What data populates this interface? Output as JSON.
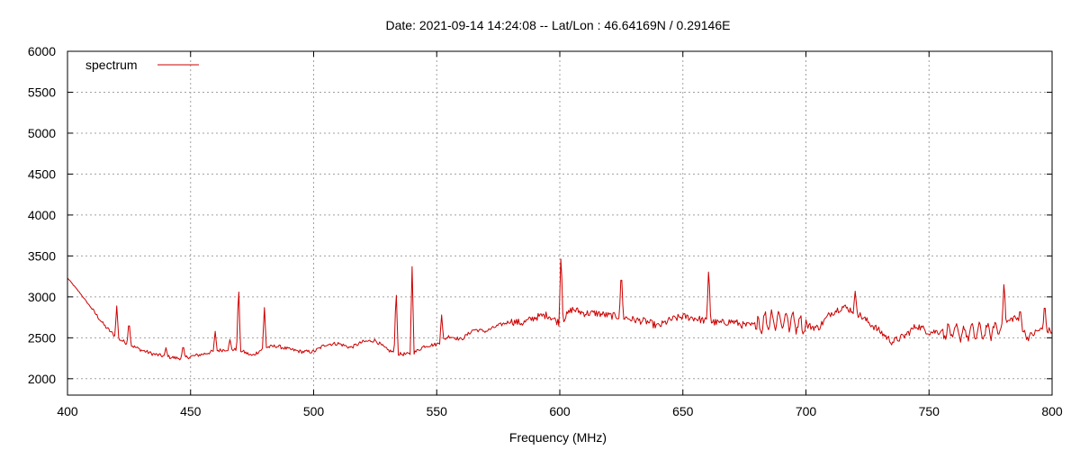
{
  "chart_data": {
    "type": "line",
    "title": "Date: 2021-09-14 14:24:08  --  Lat/Lon : 46.64169N / 0.29146E",
    "xlabel": "Frequency (MHz)",
    "ylabel": "",
    "xlim": [
      400,
      800
    ],
    "ylim": [
      1800,
      6000
    ],
    "xticks": [
      400,
      450,
      500,
      550,
      600,
      650,
      700,
      750,
      800
    ],
    "yticks": [
      2000,
      2500,
      3000,
      3500,
      4000,
      4500,
      5000,
      5500,
      6000
    ],
    "grid": true,
    "legend": {
      "placement": "top-left",
      "entries": [
        "spectrum"
      ]
    },
    "series": [
      {
        "name": "spectrum",
        "color": "#cc0000",
        "x": [
          400,
          405,
          410,
          415,
          420,
          425,
          430,
          435,
          440,
          445,
          450,
          455,
          460,
          465,
          470,
          475,
          480,
          485,
          490,
          495,
          500,
          505,
          510,
          515,
          520,
          525,
          530,
          535,
          540,
          545,
          550,
          555,
          560,
          565,
          570,
          575,
          580,
          585,
          590,
          595,
          600,
          605,
          610,
          615,
          620,
          625,
          630,
          635,
          640,
          645,
          650,
          655,
          660,
          665,
          670,
          675,
          680,
          685,
          690,
          695,
          700,
          705,
          710,
          715,
          720,
          725,
          730,
          735,
          740,
          745,
          750,
          755,
          760,
          765,
          770,
          775,
          780,
          785,
          790,
          795,
          800
        ],
        "values": [
          3230,
          3050,
          2850,
          2650,
          2500,
          2420,
          2350,
          2300,
          2270,
          2250,
          2270,
          2300,
          2340,
          2360,
          2350,
          2280,
          2380,
          2400,
          2360,
          2330,
          2330,
          2420,
          2430,
          2380,
          2450,
          2470,
          2350,
          2300,
          2300,
          2400,
          2420,
          2520,
          2480,
          2600,
          2580,
          2650,
          2700,
          2680,
          2750,
          2780,
          2680,
          2850,
          2800,
          2800,
          2770,
          2760,
          2720,
          2700,
          2640,
          2720,
          2760,
          2740,
          2700,
          2680,
          2700,
          2650,
          2650,
          2720,
          2720,
          2700,
          2650,
          2620,
          2800,
          2880,
          2820,
          2700,
          2580,
          2450,
          2520,
          2650,
          2570,
          2580,
          2560,
          2560,
          2570,
          2580,
          2650,
          2760,
          2500,
          2600,
          2580
        ]
      }
    ],
    "spikes": [
      {
        "x": 420,
        "y": 2890
      },
      {
        "x": 425,
        "y": 2720
      },
      {
        "x": 440,
        "y": 2380
      },
      {
        "x": 447,
        "y": 2420
      },
      {
        "x": 460,
        "y": 2580
      },
      {
        "x": 466,
        "y": 2480
      },
      {
        "x": 469.5,
        "y": 3160
      },
      {
        "x": 480,
        "y": 2870
      },
      {
        "x": 533.5,
        "y": 3120
      },
      {
        "x": 540,
        "y": 3370
      },
      {
        "x": 552,
        "y": 2780
      },
      {
        "x": 600.5,
        "y": 3570
      },
      {
        "x": 625,
        "y": 3350
      },
      {
        "x": 660.5,
        "y": 3390
      },
      {
        "x": 720,
        "y": 3070
      },
      {
        "x": 780.5,
        "y": 3220
      },
      {
        "x": 787,
        "y": 2870
      },
      {
        "x": 797,
        "y": 2950
      }
    ]
  }
}
